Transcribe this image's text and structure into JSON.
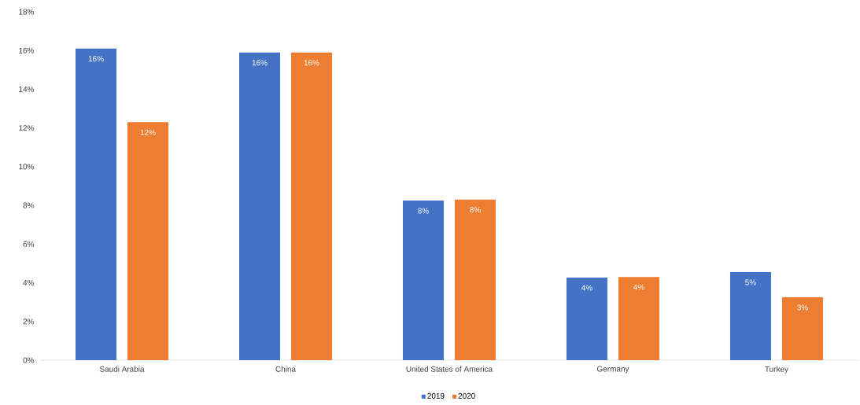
{
  "chart_data": {
    "type": "bar",
    "categories": [
      "Saudi Arabia",
      "China",
      "United States of America",
      "Germany",
      "Turkey"
    ],
    "series": [
      {
        "name": "2019",
        "color": "#4472c4",
        "values": [
          16.1,
          15.9,
          8.25,
          4.27,
          4.55
        ],
        "value_labels": [
          "16%",
          "16%",
          "8%",
          "4%",
          "5%"
        ]
      },
      {
        "name": "2020",
        "color": "#ed7d31",
        "values": [
          12.3,
          15.9,
          8.3,
          4.3,
          3.25
        ],
        "value_labels": [
          "12%",
          "16%",
          "8%",
          "4%",
          "3%"
        ]
      }
    ],
    "ylim": [
      0,
      18
    ],
    "yticks": [
      {
        "value": 0,
        "label": "0%"
      },
      {
        "value": 2,
        "label": "2%"
      },
      {
        "value": 4,
        "label": "4%"
      },
      {
        "value": 6,
        "label": "6%"
      },
      {
        "value": 8,
        "label": "8%"
      },
      {
        "value": 10,
        "label": "10%"
      },
      {
        "value": 12,
        "label": "12%"
      },
      {
        "value": 14,
        "label": "14%"
      },
      {
        "value": 16,
        "label": "16%"
      },
      {
        "value": 18,
        "label": "18%"
      }
    ],
    "legend": "bottom"
  }
}
